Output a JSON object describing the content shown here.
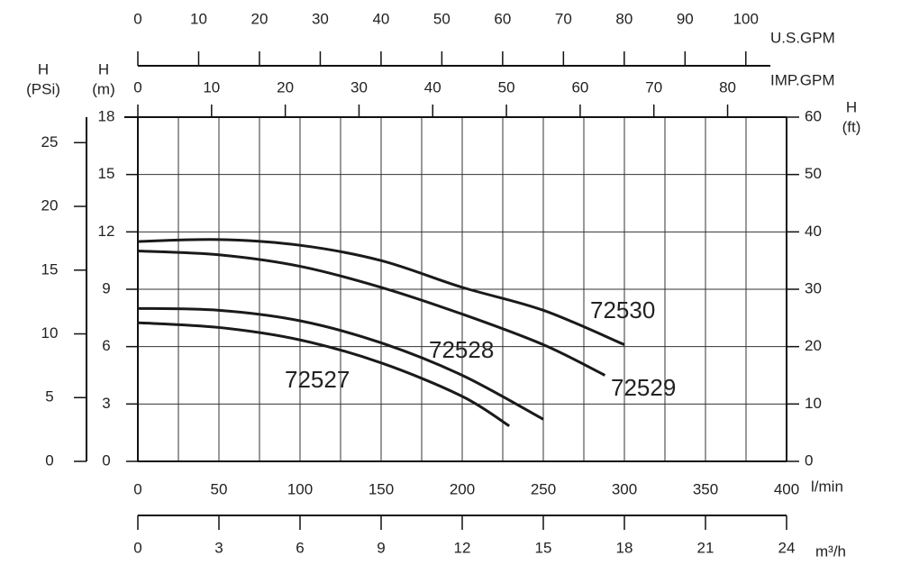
{
  "chart_data": {
    "type": "line",
    "xlabel": "l/min",
    "xlim": [
      0,
      400
    ],
    "xticks": [
      0,
      50,
      100,
      150,
      200,
      250,
      300,
      350,
      400
    ],
    "xminorticks": [
      25,
      75,
      125,
      175,
      225,
      275,
      325,
      375
    ],
    "ylabel": [
      "H",
      "(m)"
    ],
    "ylim": [
      0,
      18
    ],
    "yticks": [
      0,
      3,
      6,
      9,
      12,
      15,
      18
    ],
    "grid": true,
    "psi_axis": {
      "label": [
        "H",
        "(PSi)"
      ],
      "lim": [
        0,
        27
      ],
      "ticks": [
        0,
        5,
        10,
        15,
        20,
        25
      ]
    },
    "ft_axis": {
      "label": [
        "H",
        "(ft)"
      ],
      "lim": [
        0,
        60
      ],
      "ticks": [
        0,
        10,
        20,
        30,
        40,
        50,
        60
      ]
    },
    "us_gpm_axis": {
      "label": "U.S.GPM",
      "lim": [
        0,
        106.7
      ],
      "ticks": [
        0,
        10,
        20,
        30,
        40,
        50,
        60,
        70,
        80,
        90,
        100
      ]
    },
    "imp_gpm_axis": {
      "label": "IMP.GPM",
      "lim": [
        0,
        88
      ],
      "ticks": [
        0,
        10,
        20,
        30,
        40,
        50,
        60,
        70,
        80
      ]
    },
    "m3h_axis": {
      "label": "m³/h",
      "lim": [
        0,
        24
      ],
      "ticks": [
        0,
        3,
        6,
        9,
        12,
        15,
        18,
        21,
        24
      ]
    },
    "series": [
      {
        "name": "72530",
        "color": "#1a1a1a",
        "x": [
          0,
          50,
          100,
          150,
          200,
          250,
          300
        ],
        "values": [
          11.5,
          11.6,
          11.3,
          10.5,
          9.1,
          7.9,
          6.1
        ]
      },
      {
        "name": "72529",
        "color": "#1a1a1a",
        "x": [
          0,
          50,
          100,
          150,
          200,
          250,
          288
        ],
        "values": [
          11.0,
          10.8,
          10.2,
          9.1,
          7.7,
          6.1,
          4.5
        ]
      },
      {
        "name": "72528",
        "color": "#1a1a1a",
        "x": [
          0,
          50,
          100,
          150,
          200,
          250
        ],
        "values": [
          8.0,
          7.9,
          7.35,
          6.2,
          4.5,
          2.2
        ]
      },
      {
        "name": "72527",
        "color": "#1a1a1a",
        "x": [
          0,
          50,
          100,
          150,
          200,
          229
        ],
        "values": [
          7.25,
          7.0,
          6.35,
          5.15,
          3.4,
          1.85
        ]
      }
    ]
  }
}
